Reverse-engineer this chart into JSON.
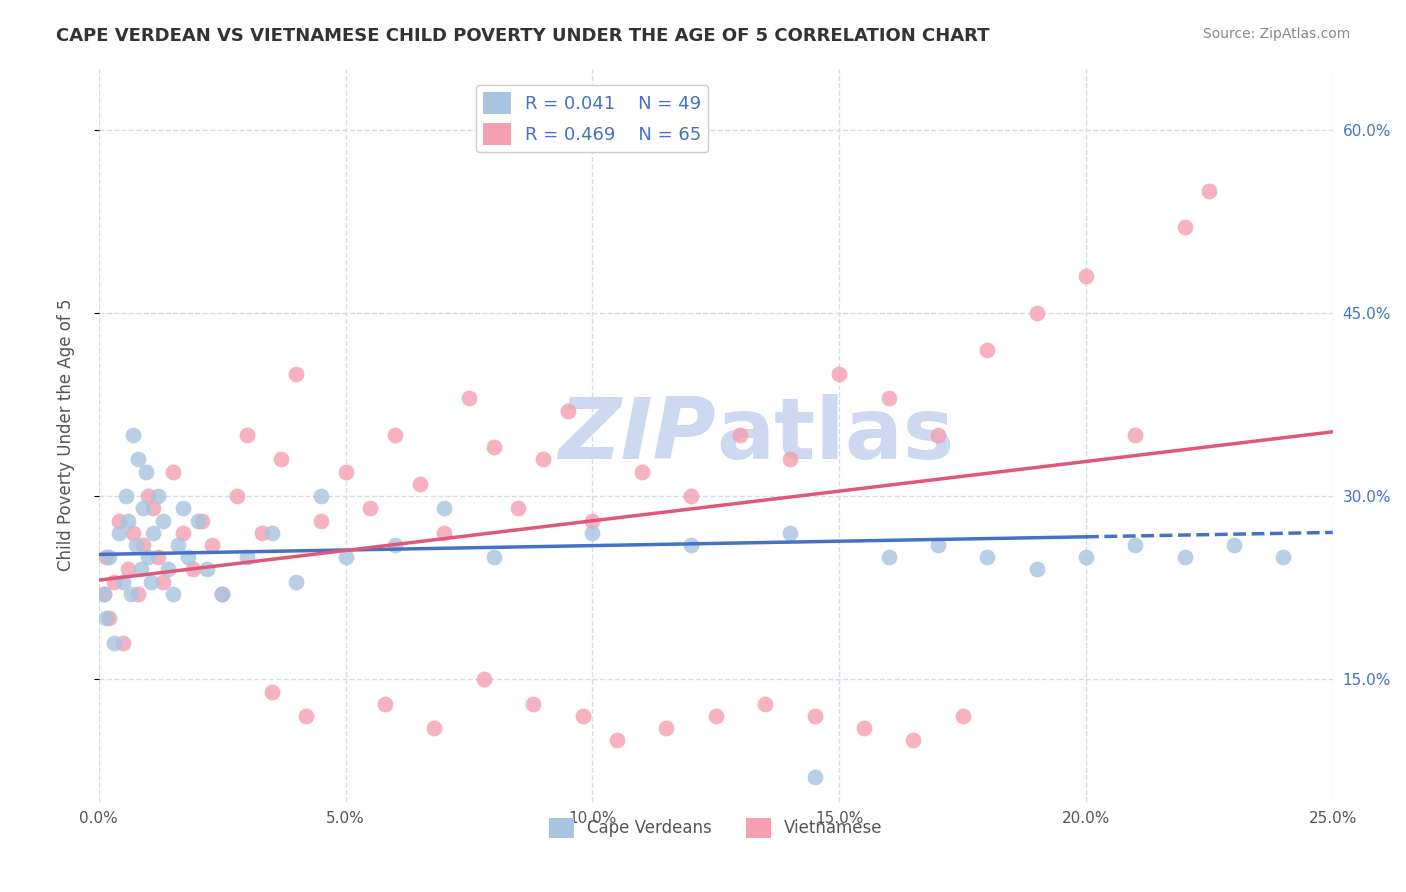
{
  "title": "CAPE VERDEAN VS VIETNAMESE CHILD POVERTY UNDER THE AGE OF 5 CORRELATION CHART",
  "source": "Source: ZipAtlas.com",
  "ylabel": "Child Poverty Under the Age of 5",
  "xlim": [
    0.0,
    25.0
  ],
  "ylim": [
    5.0,
    65.0
  ],
  "xticks": [
    0.0,
    5.0,
    10.0,
    15.0,
    20.0,
    25.0
  ],
  "yticks_right": [
    15.0,
    30.0,
    45.0,
    60.0
  ],
  "r_cape": 0.041,
  "n_cape": 49,
  "r_viet": 0.469,
  "n_viet": 65,
  "color_cape": "#a8c4e0",
  "color_viet": "#f4a0b0",
  "color_line_cape": "#4472c4",
  "color_line_viet": "#e05878",
  "watermark_color": "#ccd9f0",
  "background_color": "#ffffff",
  "grid_color": "#d0d8e8",
  "cape_x": [
    0.1,
    0.2,
    0.15,
    0.3,
    0.4,
    0.5,
    0.55,
    0.6,
    0.65,
    0.7,
    0.75,
    0.8,
    0.85,
    0.9,
    0.95,
    1.0,
    1.05,
    1.1,
    1.2,
    1.3,
    1.4,
    1.5,
    1.6,
    1.7,
    1.8,
    2.0,
    2.2,
    2.5,
    3.0,
    3.5,
    4.0,
    4.5,
    5.0,
    6.0,
    7.0,
    8.0,
    10.0,
    12.0,
    14.0,
    16.0,
    17.0,
    18.0,
    19.0,
    20.0,
    21.0,
    22.0,
    23.0,
    24.0,
    14.5
  ],
  "cape_y": [
    22.0,
    25.0,
    20.0,
    18.0,
    27.0,
    23.0,
    30.0,
    28.0,
    22.0,
    35.0,
    26.0,
    33.0,
    24.0,
    29.0,
    32.0,
    25.0,
    23.0,
    27.0,
    30.0,
    28.0,
    24.0,
    22.0,
    26.0,
    29.0,
    25.0,
    28.0,
    24.0,
    22.0,
    25.0,
    27.0,
    23.0,
    30.0,
    25.0,
    26.0,
    29.0,
    25.0,
    27.0,
    26.0,
    27.0,
    25.0,
    26.0,
    25.0,
    24.0,
    25.0,
    26.0,
    25.0,
    26.0,
    25.0,
    7.0
  ],
  "viet_x": [
    0.1,
    0.15,
    0.2,
    0.3,
    0.4,
    0.5,
    0.6,
    0.7,
    0.8,
    0.9,
    1.0,
    1.1,
    1.2,
    1.3,
    1.5,
    1.7,
    1.9,
    2.1,
    2.3,
    2.5,
    2.8,
    3.0,
    3.3,
    3.7,
    4.0,
    4.5,
    5.0,
    5.5,
    6.0,
    6.5,
    7.0,
    7.5,
    8.0,
    8.5,
    9.0,
    9.5,
    10.0,
    11.0,
    12.0,
    13.0,
    14.0,
    15.0,
    16.0,
    17.0,
    18.0,
    19.0,
    20.0,
    21.0,
    22.0,
    22.5,
    3.5,
    4.2,
    5.8,
    6.8,
    7.8,
    8.8,
    9.8,
    10.5,
    11.5,
    12.5,
    13.5,
    14.5,
    15.5,
    16.5,
    17.5
  ],
  "viet_y": [
    22.0,
    25.0,
    20.0,
    23.0,
    28.0,
    18.0,
    24.0,
    27.0,
    22.0,
    26.0,
    30.0,
    29.0,
    25.0,
    23.0,
    32.0,
    27.0,
    24.0,
    28.0,
    26.0,
    22.0,
    30.0,
    35.0,
    27.0,
    33.0,
    40.0,
    28.0,
    32.0,
    29.0,
    35.0,
    31.0,
    27.0,
    38.0,
    34.0,
    29.0,
    33.0,
    37.0,
    28.0,
    32.0,
    30.0,
    35.0,
    33.0,
    40.0,
    38.0,
    35.0,
    42.0,
    45.0,
    48.0,
    35.0,
    52.0,
    55.0,
    14.0,
    12.0,
    13.0,
    11.0,
    15.0,
    13.0,
    12.0,
    10.0,
    11.0,
    12.0,
    13.0,
    12.0,
    11.0,
    10.0,
    12.0
  ]
}
